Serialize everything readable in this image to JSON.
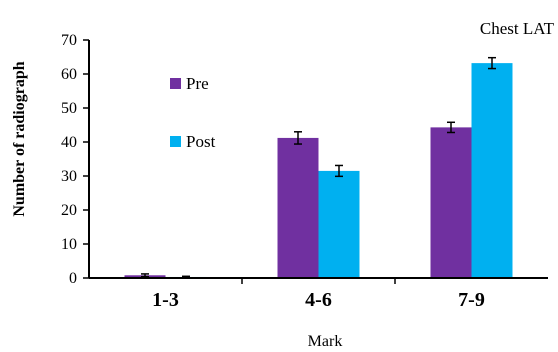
{
  "chart_data": {
    "type": "bar",
    "title": "Chest LAT",
    "xlabel": "Mark",
    "ylabel": "Number of radiograph",
    "categories": [
      "1-3",
      "4-6",
      "7-9"
    ],
    "series": [
      {
        "name": "Pre",
        "color": "#7030a0",
        "values": [
          0.8,
          41.2,
          44.3
        ],
        "errors": [
          0.4,
          1.8,
          1.5
        ]
      },
      {
        "name": "Post",
        "color": "#00b0f0",
        "values": [
          0.3,
          31.5,
          63.2
        ],
        "errors": [
          0.2,
          1.6,
          1.6
        ]
      }
    ],
    "ylim": [
      0,
      70
    ],
    "yticks": [
      0,
      10,
      20,
      30,
      40,
      50,
      60,
      70
    ],
    "grid": false,
    "legend": "top-left"
  }
}
